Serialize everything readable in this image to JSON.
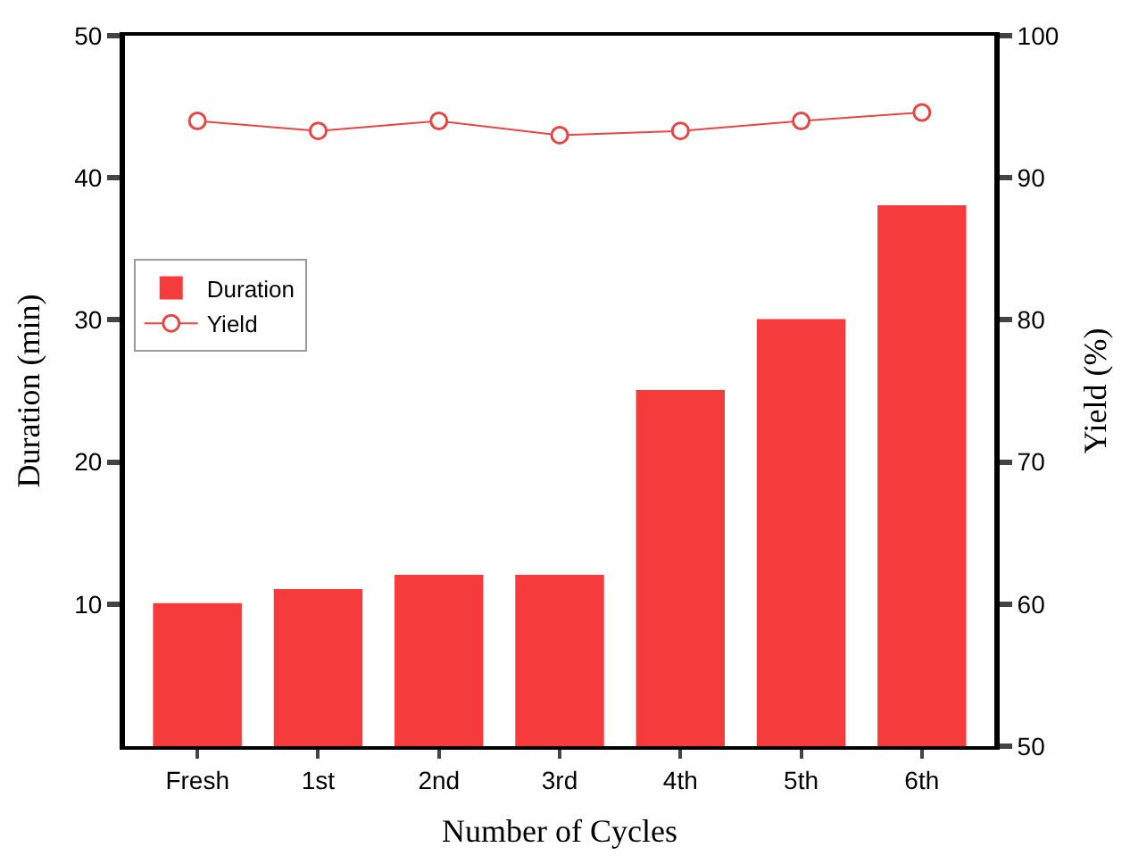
{
  "chart_data": {
    "type": "bar",
    "xlabel": "Number of Cycles",
    "ylabel": "Duration (min)",
    "y2label": "Yield (%)",
    "categories": [
      "Fresh",
      "1st",
      "2nd",
      "3rd",
      "4th",
      "5th",
      "6th"
    ],
    "series": [
      {
        "name": "Duration",
        "color": "#f53b3b",
        "values": [
          10,
          11,
          12,
          12,
          25,
          30,
          38
        ]
      },
      {
        "name": "Yield",
        "type": "line",
        "axis": "y2",
        "color": "#e84545",
        "marker": "circle",
        "values": [
          94.0,
          93.3,
          94.0,
          93.0,
          93.3,
          94.0,
          94.6
        ]
      }
    ],
    "ylim": [
      0,
      50
    ],
    "yticks": [
      10,
      20,
      30,
      40,
      50
    ],
    "y2lim": [
      50,
      100
    ],
    "y2ticks": [
      50,
      60,
      70,
      80,
      90,
      100
    ],
    "legend": "left"
  }
}
